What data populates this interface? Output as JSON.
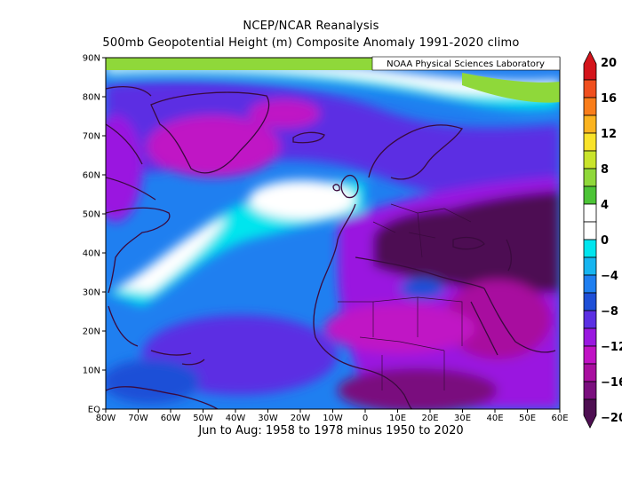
{
  "title": {
    "line1": "NCEP/NCAR Reanalysis",
    "line2": "500mb Geopotential Height (m) Composite Anomaly 1991-2020 climo"
  },
  "subtitle": "Jun to Aug: 1958 to 1978 minus 1950 to 2020",
  "credit": "NOAA Physical Sciences Laboratory",
  "map": {
    "lat_labels": [
      "90N",
      "80N",
      "70N",
      "60N",
      "50N",
      "40N",
      "30N",
      "20N",
      "10N",
      "EQ"
    ],
    "lon_labels": [
      "80W",
      "70W",
      "60W",
      "50W",
      "40W",
      "30W",
      "20W",
      "10W",
      "0",
      "10E",
      "20E",
      "30E",
      "40E",
      "50E",
      "60E"
    ],
    "lat_range": [
      0,
      90
    ],
    "lon_range": [
      -80,
      60
    ]
  },
  "colorbar": {
    "labels": [
      "20",
      "16",
      "12",
      "8",
      "4",
      "0",
      "−4",
      "−8",
      "−12",
      "−16",
      "−20"
    ],
    "colors": [
      "#d4141b",
      "#f04f1e",
      "#f97d1a",
      "#fbb31f",
      "#f9e32a",
      "#c9e42b",
      "#8fd83a",
      "#4cc436",
      "#ffffff",
      "#ffffff",
      "#00e5ee",
      "#16b5f0",
      "#1f7ff0",
      "#1e4fd7",
      "#5b2fe3",
      "#9a18e0",
      "#c012c5",
      "#a80e9f",
      "#7a0f7e",
      "#4e0f52"
    ],
    "min": -20,
    "max": 20
  }
}
